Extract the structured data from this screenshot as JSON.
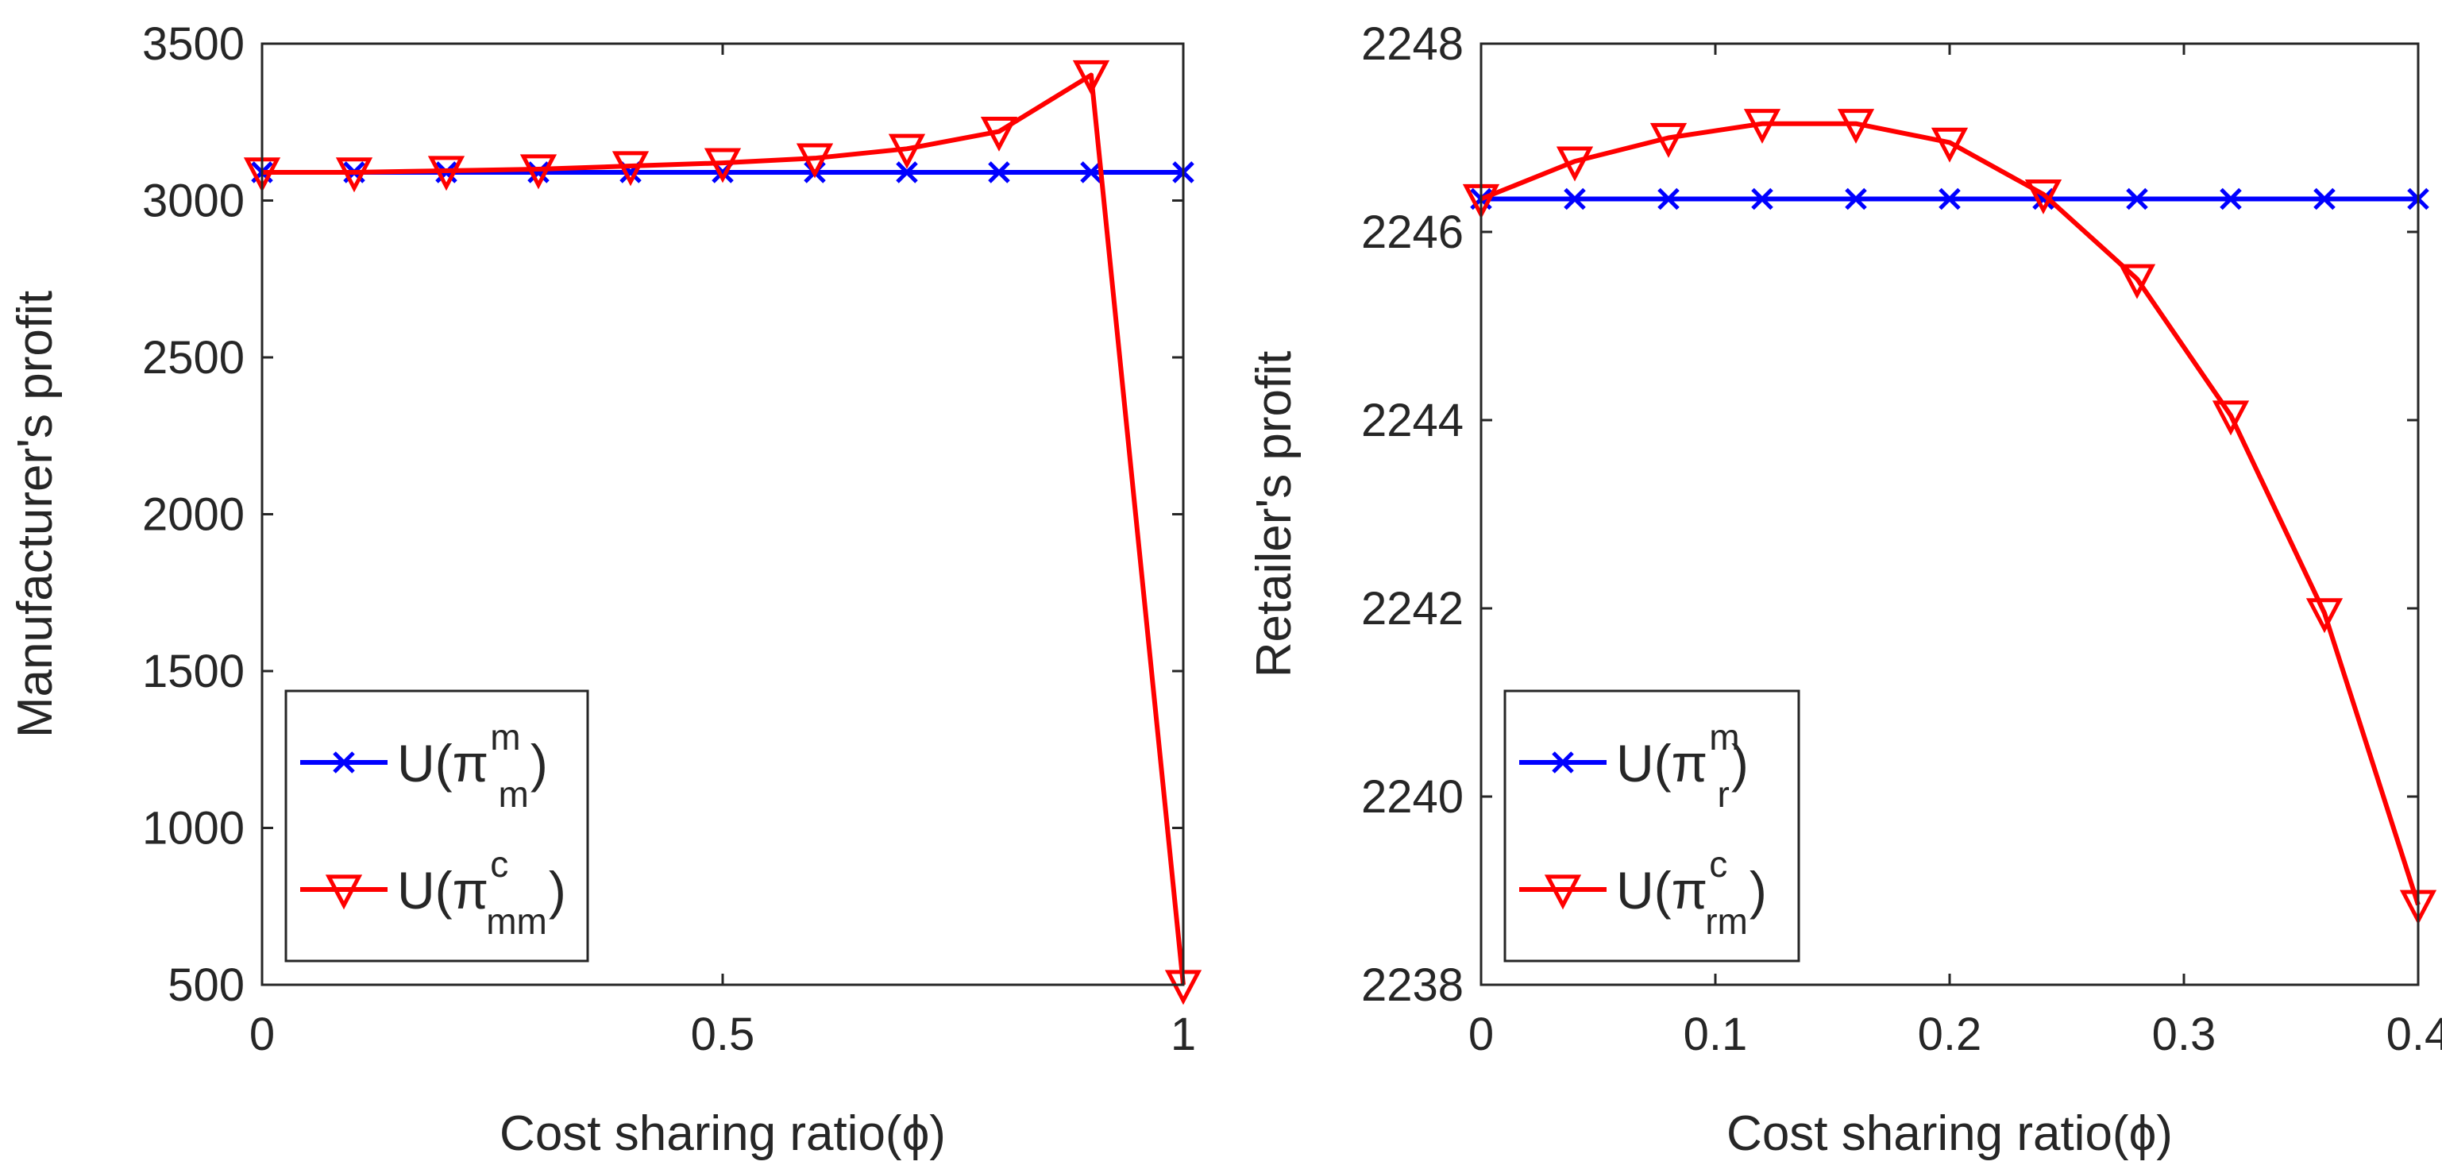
{
  "chart_data": [
    {
      "type": "line",
      "xlabel": "Cost sharing ratio(ϕ)",
      "ylabel": "Manufacturer's profit",
      "xlim": [
        0,
        1
      ],
      "ylim": [
        500,
        3500
      ],
      "xticks": [
        0,
        0.5,
        1
      ],
      "xtick_labels": [
        "0",
        "0.5",
        "1"
      ],
      "yticks": [
        500,
        1000,
        1500,
        2000,
        2500,
        3000,
        3500
      ],
      "ytick_labels": [
        "500",
        "1000",
        "1500",
        "2000",
        "2500",
        "3000",
        "3500"
      ],
      "legend_position": "bottom-left",
      "series": [
        {
          "name": "U(π m m)",
          "legend_main": "U(π",
          "legend_sup": "m",
          "legend_sub": "m",
          "legend_close": ")",
          "color": "#0000ff",
          "marker": "x",
          "x": [
            0,
            0.1,
            0.2,
            0.3,
            0.4,
            0.5,
            0.6,
            0.7,
            0.8,
            0.9,
            1.0
          ],
          "y": [
            3090,
            3090,
            3090,
            3090,
            3090,
            3090,
            3090,
            3090,
            3090,
            3090,
            3090
          ]
        },
        {
          "name": "U(π c mm)",
          "legend_main": "U(π",
          "legend_sup": "c",
          "legend_sub": "mm",
          "legend_close": ")",
          "color": "#ff0000",
          "marker": "triangle-down",
          "x": [
            0,
            0.1,
            0.2,
            0.3,
            0.4,
            0.5,
            0.6,
            0.7,
            0.8,
            0.9,
            1.0
          ],
          "y": [
            3090,
            3090,
            3095,
            3100,
            3110,
            3120,
            3135,
            3165,
            3220,
            3400,
            500
          ]
        }
      ]
    },
    {
      "type": "line",
      "xlabel": "Cost sharing ratio(ϕ)",
      "ylabel": "Retailer's profit",
      "xlim": [
        0,
        0.4
      ],
      "ylim": [
        2238,
        2248
      ],
      "xticks": [
        0,
        0.1,
        0.2,
        0.3,
        0.4
      ],
      "xtick_labels": [
        "0",
        "0.1",
        "0.2",
        "0.3",
        "0.4"
      ],
      "yticks": [
        2238,
        2240,
        2242,
        2244,
        2246,
        2248
      ],
      "ytick_labels": [
        "2238",
        "2240",
        "2242",
        "2244",
        "2246",
        "2248"
      ],
      "legend_position": "bottom-left",
      "series": [
        {
          "name": "U(π m r)",
          "legend_main": "U(π",
          "legend_sup": "m",
          "legend_sub": "r",
          "legend_close": ")",
          "color": "#0000ff",
          "marker": "x",
          "x": [
            0,
            0.04,
            0.08,
            0.12,
            0.16,
            0.2,
            0.24,
            0.28,
            0.32,
            0.36,
            0.4
          ],
          "y": [
            2246.35,
            2246.35,
            2246.35,
            2246.35,
            2246.35,
            2246.35,
            2246.35,
            2246.35,
            2246.35,
            2246.35,
            2246.35
          ]
        },
        {
          "name": "U(π c rm)",
          "legend_main": "U(π",
          "legend_sup": "c",
          "legend_sub": "rm",
          "legend_close": ")",
          "color": "#ff0000",
          "marker": "triangle-down",
          "x": [
            0,
            0.04,
            0.08,
            0.12,
            0.16,
            0.2,
            0.24,
            0.28,
            0.32,
            0.36,
            0.4
          ],
          "y": [
            2246.35,
            2246.75,
            2247.0,
            2247.15,
            2247.15,
            2246.95,
            2246.4,
            2245.5,
            2244.05,
            2241.95,
            2238.85
          ]
        }
      ]
    }
  ]
}
